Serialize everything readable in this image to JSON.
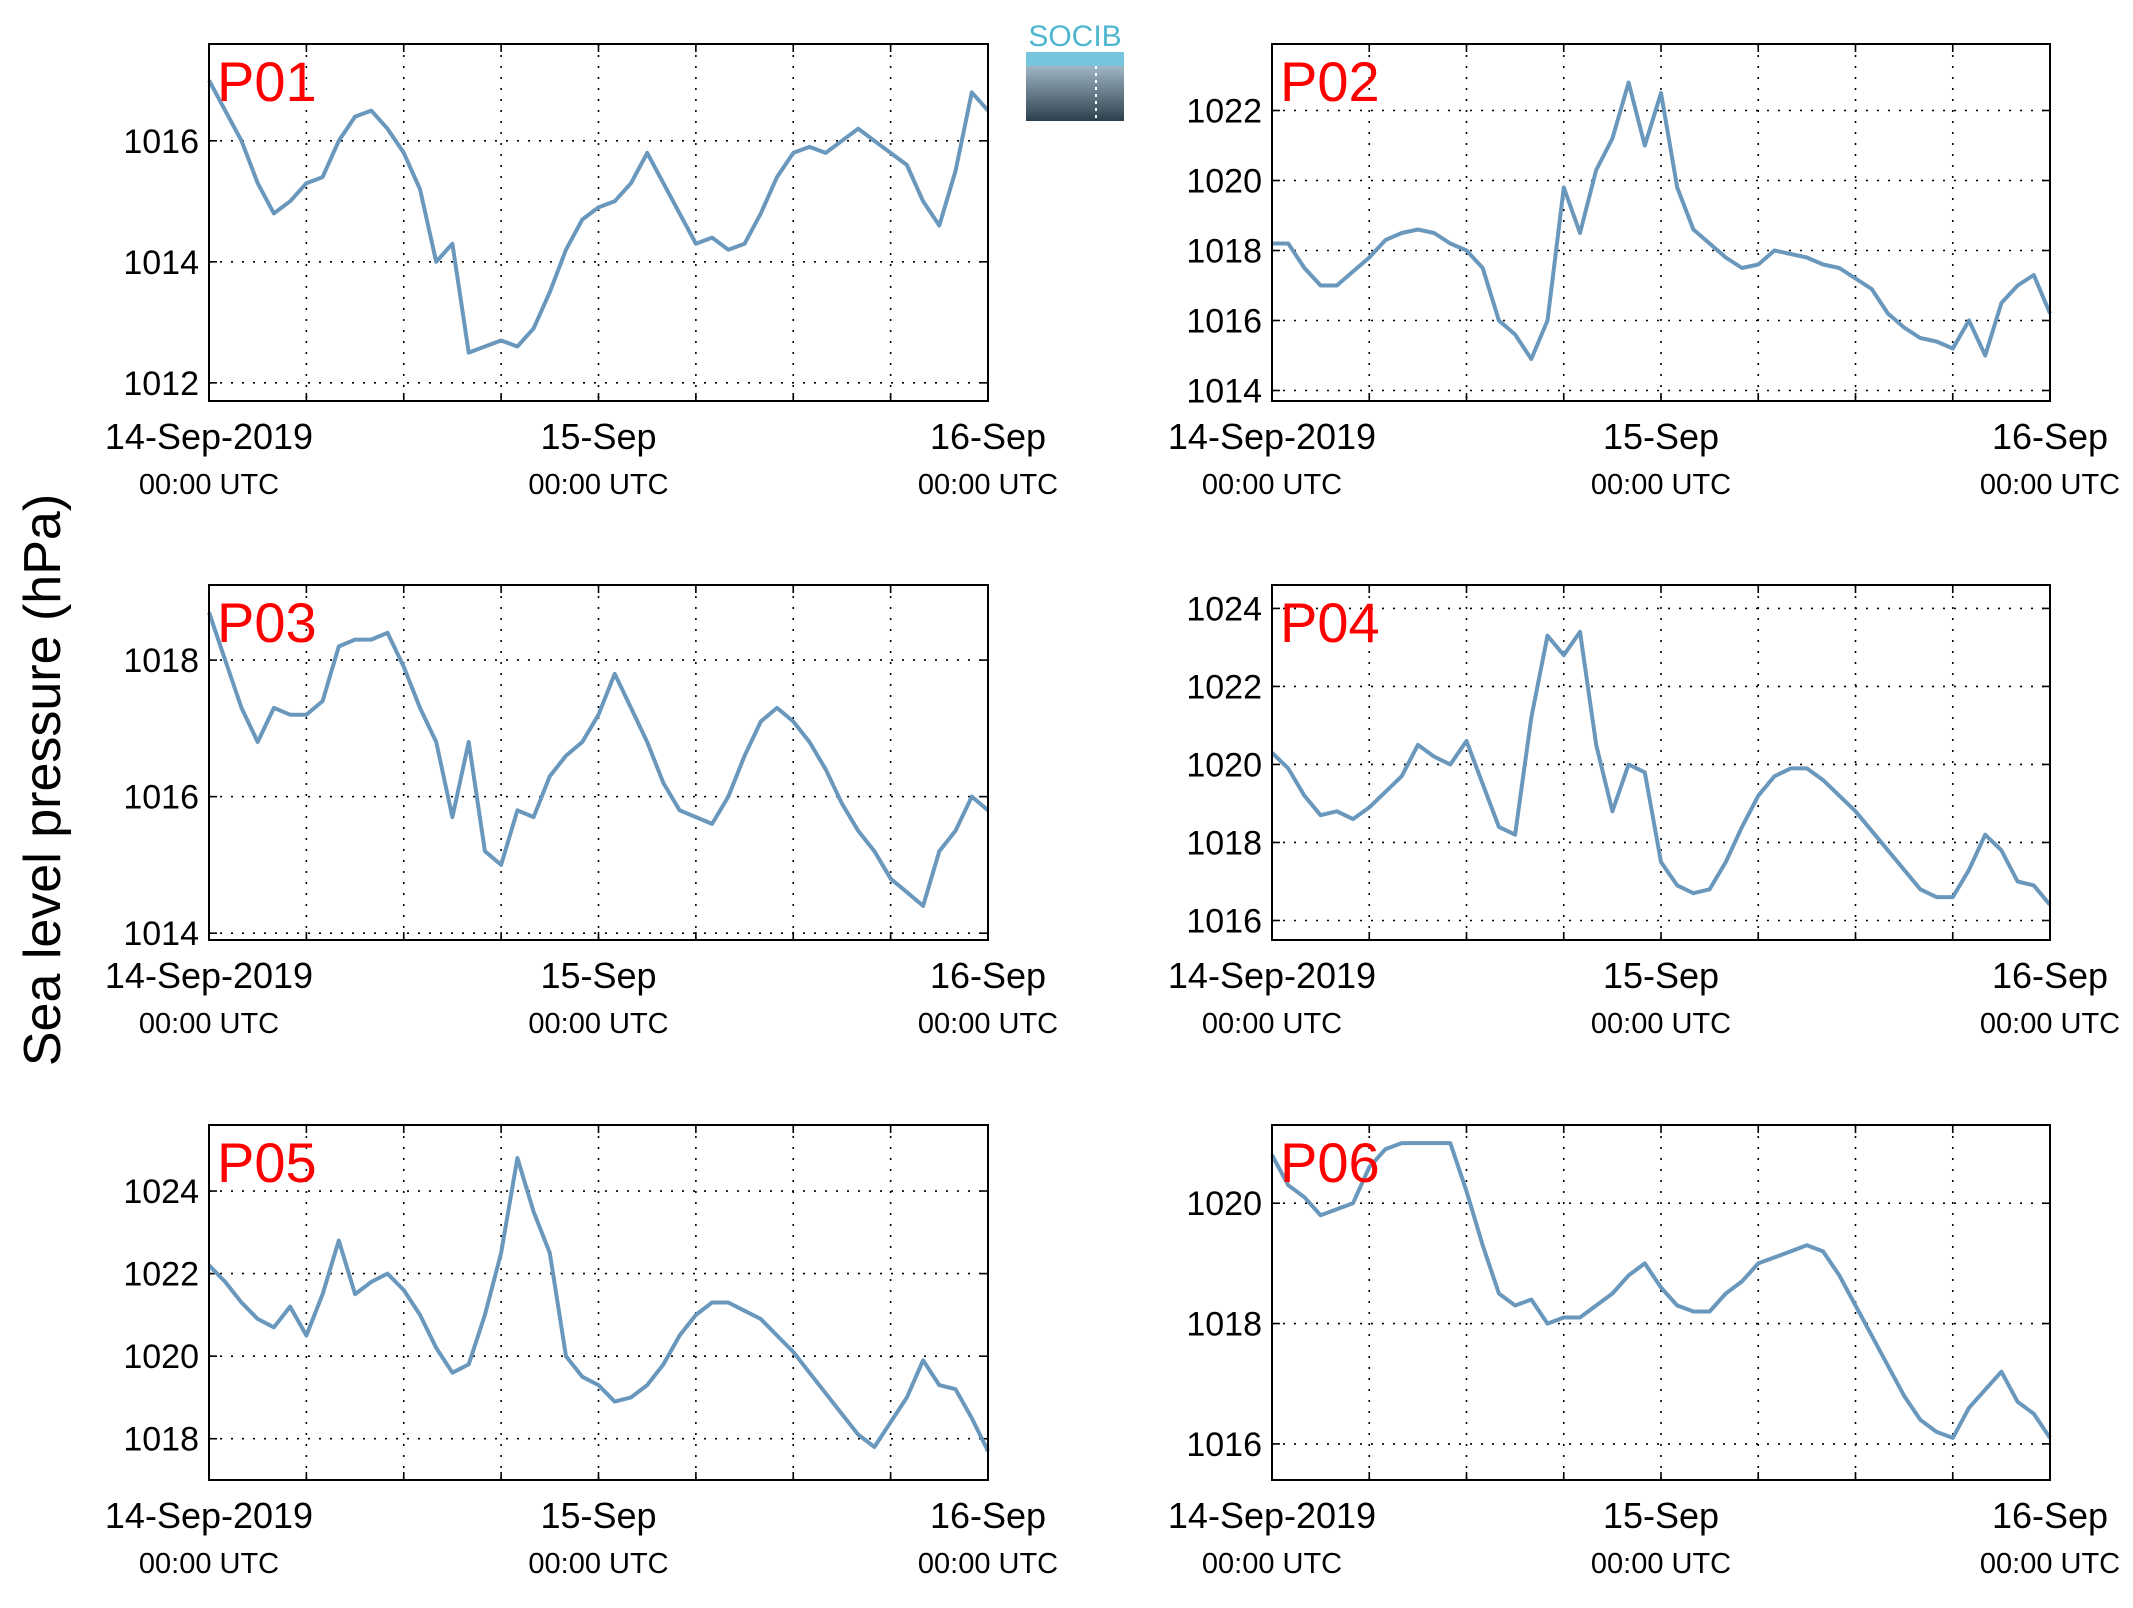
{
  "figure": {
    "ylabel": "Sea level pressure (hPa)",
    "logo_text": "SOCIB",
    "line_color": "#6a98bd",
    "label_color": "#ff0000",
    "x_tick_labels": [
      {
        "line1": "14-Sep-2019",
        "line2": "00:00 UTC"
      },
      {
        "line1": "15-Sep",
        "line2": "00:00 UTC"
      },
      {
        "line1": "16-Sep",
        "line2": "00:00 UTC"
      }
    ]
  },
  "chart_data": [
    {
      "type": "line",
      "label": "P01",
      "x_unit": "hours since 14-Sep-2019 00:00 UTC",
      "xlim": [
        0,
        48
      ],
      "ylim": [
        1011.7,
        1017.6
      ],
      "yticks": [
        1012,
        1014,
        1016
      ],
      "grid": true,
      "x": [
        0,
        1,
        2,
        3,
        4,
        5,
        6,
        7,
        8,
        9,
        10,
        11,
        12,
        13,
        14,
        15,
        16,
        17,
        18,
        19,
        20,
        21,
        22,
        23,
        24,
        25,
        26,
        27,
        28,
        29,
        30,
        31,
        32,
        33,
        34,
        35,
        36,
        37,
        38,
        39,
        40,
        41,
        42,
        43,
        44,
        45,
        46,
        47,
        48
      ],
      "y": [
        1017.0,
        1016.5,
        1016.0,
        1015.3,
        1014.8,
        1015.0,
        1015.3,
        1015.4,
        1016.0,
        1016.4,
        1016.5,
        1016.2,
        1015.8,
        1015.2,
        1014.0,
        1014.3,
        1012.5,
        1012.6,
        1012.7,
        1012.6,
        1012.9,
        1013.5,
        1014.2,
        1014.7,
        1014.9,
        1015.0,
        1015.3,
        1015.8,
        1015.3,
        1014.8,
        1014.3,
        1014.4,
        1014.2,
        1014.3,
        1014.8,
        1015.4,
        1015.8,
        1015.9,
        1015.8,
        1016.0,
        1016.2,
        1016.0,
        1015.8,
        1015.6,
        1015.0,
        1014.6,
        1015.5,
        1016.8,
        1016.5
      ],
      "label_pos": "top-left"
    },
    {
      "type": "line",
      "label": "P02",
      "x_unit": "hours since 14-Sep-2019 00:00 UTC",
      "xlim": [
        0,
        48
      ],
      "ylim": [
        1013.7,
        1023.9
      ],
      "yticks": [
        1014,
        1016,
        1018,
        1020,
        1022
      ],
      "grid": true,
      "x": [
        0,
        1,
        2,
        3,
        4,
        5,
        6,
        7,
        8,
        9,
        10,
        11,
        12,
        13,
        14,
        15,
        16,
        17,
        18,
        19,
        20,
        21,
        22,
        23,
        24,
        25,
        26,
        27,
        28,
        29,
        30,
        31,
        32,
        33,
        34,
        35,
        36,
        37,
        38,
        39,
        40,
        41,
        42,
        43,
        44,
        45,
        46,
        47,
        48
      ],
      "y": [
        1018.2,
        1018.2,
        1017.5,
        1017.0,
        1017.0,
        1017.4,
        1017.8,
        1018.3,
        1018.5,
        1018.6,
        1018.5,
        1018.2,
        1018.0,
        1017.5,
        1016.0,
        1015.6,
        1014.9,
        1016.0,
        1019.8,
        1018.5,
        1020.3,
        1021.2,
        1022.8,
        1021.0,
        1022.5,
        1019.8,
        1018.6,
        1018.2,
        1017.8,
        1017.5,
        1017.6,
        1018.0,
        1017.9,
        1017.8,
        1017.6,
        1017.5,
        1017.2,
        1016.9,
        1016.2,
        1015.8,
        1015.5,
        1015.4,
        1015.2,
        1016.0,
        1015.0,
        1016.5,
        1017.0,
        1017.3,
        1016.2
      ],
      "label_pos": "top-left"
    },
    {
      "type": "line",
      "label": "P03",
      "x_unit": "hours since 14-Sep-2019 00:00 UTC",
      "xlim": [
        0,
        48
      ],
      "ylim": [
        1013.9,
        1019.1
      ],
      "yticks": [
        1014,
        1016,
        1018
      ],
      "grid": true,
      "x": [
        0,
        1,
        2,
        3,
        4,
        5,
        6,
        7,
        8,
        9,
        10,
        11,
        12,
        13,
        14,
        15,
        16,
        17,
        18,
        19,
        20,
        21,
        22,
        23,
        24,
        25,
        26,
        27,
        28,
        29,
        30,
        31,
        32,
        33,
        34,
        35,
        36,
        37,
        38,
        39,
        40,
        41,
        42,
        43,
        44,
        45,
        46,
        47,
        48
      ],
      "y": [
        1018.7,
        1018.0,
        1017.3,
        1016.8,
        1017.3,
        1017.2,
        1017.2,
        1017.4,
        1018.2,
        1018.3,
        1018.3,
        1018.4,
        1017.9,
        1017.3,
        1016.8,
        1015.7,
        1016.8,
        1015.2,
        1015.0,
        1015.8,
        1015.7,
        1016.3,
        1016.6,
        1016.8,
        1017.2,
        1017.8,
        1017.3,
        1016.8,
        1016.2,
        1015.8,
        1015.7,
        1015.6,
        1016.0,
        1016.6,
        1017.1,
        1017.3,
        1017.1,
        1016.8,
        1016.4,
        1015.9,
        1015.5,
        1015.2,
        1014.8,
        1014.6,
        1014.4,
        1015.2,
        1015.5,
        1016.0,
        1015.8
      ],
      "label_pos": "top-left"
    },
    {
      "type": "line",
      "label": "P04",
      "x_unit": "hours since 14-Sep-2019 00:00 UTC",
      "xlim": [
        0,
        48
      ],
      "ylim": [
        1015.5,
        1024.6
      ],
      "yticks": [
        1016,
        1018,
        1020,
        1022,
        1024
      ],
      "grid": true,
      "x": [
        0,
        1,
        2,
        3,
        4,
        5,
        6,
        7,
        8,
        9,
        10,
        11,
        12,
        13,
        14,
        15,
        16,
        17,
        18,
        19,
        20,
        21,
        22,
        23,
        24,
        25,
        26,
        27,
        28,
        29,
        30,
        31,
        32,
        33,
        34,
        35,
        36,
        37,
        38,
        39,
        40,
        41,
        42,
        43,
        44,
        45,
        46,
        47,
        48
      ],
      "y": [
        1020.3,
        1019.9,
        1019.2,
        1018.7,
        1018.8,
        1018.6,
        1018.9,
        1019.3,
        1019.7,
        1020.5,
        1020.2,
        1020.0,
        1020.6,
        1019.5,
        1018.4,
        1018.2,
        1021.2,
        1023.3,
        1022.8,
        1023.4,
        1020.5,
        1018.8,
        1020.0,
        1019.8,
        1017.5,
        1016.9,
        1016.7,
        1016.8,
        1017.5,
        1018.4,
        1019.2,
        1019.7,
        1019.9,
        1019.9,
        1019.6,
        1019.2,
        1018.8,
        1018.3,
        1017.8,
        1017.3,
        1016.8,
        1016.6,
        1016.6,
        1017.3,
        1018.2,
        1017.8,
        1017.0,
        1016.9,
        1016.4
      ],
      "label_pos": "top-left"
    },
    {
      "type": "line",
      "label": "P05",
      "x_unit": "hours since 14-Sep-2019 00:00 UTC",
      "xlim": [
        0,
        48
      ],
      "ylim": [
        1017.0,
        1025.6
      ],
      "yticks": [
        1018,
        1020,
        1022,
        1024
      ],
      "grid": true,
      "x": [
        0,
        1,
        2,
        3,
        4,
        5,
        6,
        7,
        8,
        9,
        10,
        11,
        12,
        13,
        14,
        15,
        16,
        17,
        18,
        19,
        20,
        21,
        22,
        23,
        24,
        25,
        26,
        27,
        28,
        29,
        30,
        31,
        32,
        33,
        34,
        35,
        36,
        37,
        38,
        39,
        40,
        41,
        42,
        43,
        44,
        45,
        46,
        47,
        48
      ],
      "y": [
        1022.2,
        1021.8,
        1021.3,
        1020.9,
        1020.7,
        1021.2,
        1020.5,
        1021.5,
        1022.8,
        1021.5,
        1021.8,
        1022.0,
        1021.6,
        1021.0,
        1020.2,
        1019.6,
        1019.8,
        1021.0,
        1022.5,
        1024.8,
        1023.5,
        1022.5,
        1020.0,
        1019.5,
        1019.3,
        1018.9,
        1019.0,
        1019.3,
        1019.8,
        1020.5,
        1021.0,
        1021.3,
        1021.3,
        1021.1,
        1020.9,
        1020.5,
        1020.1,
        1019.6,
        1019.1,
        1018.6,
        1018.1,
        1017.8,
        1018.4,
        1019.0,
        1019.9,
        1019.3,
        1019.2,
        1018.5,
        1017.7
      ],
      "label_pos": "top-left"
    },
    {
      "type": "line",
      "label": "P06",
      "x_unit": "hours since 14-Sep-2019 00:00 UTC",
      "xlim": [
        0,
        48
      ],
      "ylim": [
        1015.4,
        1021.3
      ],
      "yticks": [
        1016,
        1018,
        1020
      ],
      "grid": true,
      "x": [
        0,
        1,
        2,
        3,
        4,
        5,
        6,
        7,
        8,
        9,
        10,
        11,
        12,
        13,
        14,
        15,
        16,
        17,
        18,
        19,
        20,
        21,
        22,
        23,
        24,
        25,
        26,
        27,
        28,
        29,
        30,
        31,
        32,
        33,
        34,
        35,
        36,
        37,
        38,
        39,
        40,
        41,
        42,
        43,
        44,
        45,
        46,
        47,
        48
      ],
      "y": [
        1020.8,
        1020.3,
        1020.1,
        1019.8,
        1019.9,
        1020.0,
        1020.6,
        1020.9,
        1021.0,
        1021.0,
        1021.0,
        1021.0,
        1020.2,
        1019.3,
        1018.5,
        1018.3,
        1018.4,
        1018.0,
        1018.1,
        1018.1,
        1018.3,
        1018.5,
        1018.8,
        1019.0,
        1018.6,
        1018.3,
        1018.2,
        1018.2,
        1018.5,
        1018.7,
        1019.0,
        1019.1,
        1019.2,
        1019.3,
        1019.2,
        1018.8,
        1018.3,
        1017.8,
        1017.3,
        1016.8,
        1016.4,
        1016.2,
        1016.1,
        1016.6,
        1016.9,
        1017.2,
        1016.7,
        1016.5,
        1016.1
      ],
      "label_pos": "top-left"
    }
  ]
}
